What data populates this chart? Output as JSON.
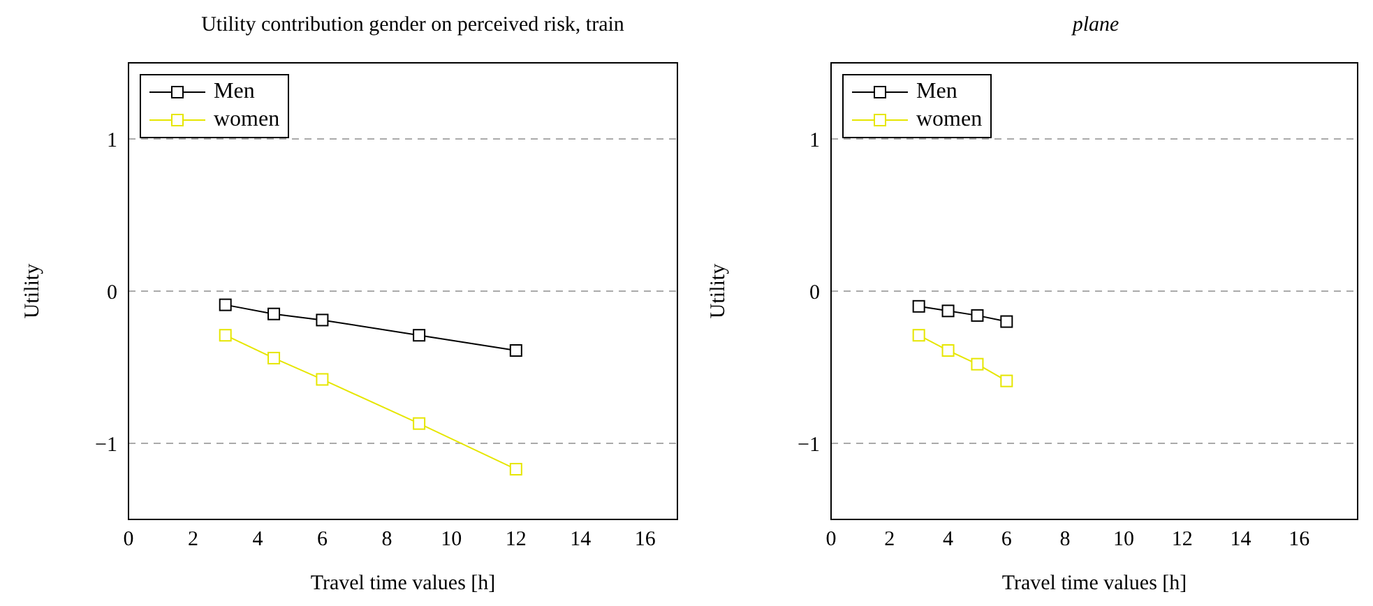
{
  "chart_data": [
    {
      "type": "line",
      "title": "Utility contribution gender on perceived risk, train",
      "xlabel": "Travel time values [h]",
      "ylabel": "Utility",
      "xlim": [
        0,
        17
      ],
      "xticks": [
        0,
        2,
        4,
        6,
        8,
        10,
        12,
        14,
        16
      ],
      "ylim": [
        -1.5,
        1.5
      ],
      "yticks": [
        -1,
        0,
        1
      ],
      "grid": "y",
      "legend": "top left",
      "marker": "square",
      "line_style": "solid",
      "series": [
        {
          "name": "Men",
          "color": "#000000",
          "x": [
            3,
            4.5,
            6,
            9,
            12
          ],
          "values": [
            -0.09,
            -0.15,
            -0.19,
            -0.29,
            -0.39
          ]
        },
        {
          "name": "women",
          "color": "#e6e600",
          "x": [
            3,
            4.5,
            6,
            9,
            12
          ],
          "values": [
            -0.29,
            -0.44,
            -0.58,
            -0.87,
            -1.17
          ]
        }
      ]
    },
    {
      "type": "line",
      "title": "plane",
      "xlabel": "Travel time values [h]",
      "ylabel": "Utility",
      "xlim": [
        0,
        18
      ],
      "xticks": [
        0,
        2,
        4,
        6,
        8,
        10,
        12,
        14,
        16
      ],
      "ylim": [
        -1.5,
        1.5
      ],
      "yticks": [
        -1,
        0,
        1
      ],
      "grid": "y",
      "legend": "top left",
      "marker": "square",
      "line_style": "solid",
      "series": [
        {
          "name": "Men",
          "color": "#000000",
          "x": [
            3,
            4,
            5,
            6
          ],
          "values": [
            -0.1,
            -0.13,
            -0.16,
            -0.2
          ]
        },
        {
          "name": "women",
          "color": "#e6e600",
          "x": [
            3,
            4,
            5,
            6
          ],
          "values": [
            -0.29,
            -0.39,
            -0.48,
            -0.59
          ]
        }
      ]
    }
  ]
}
